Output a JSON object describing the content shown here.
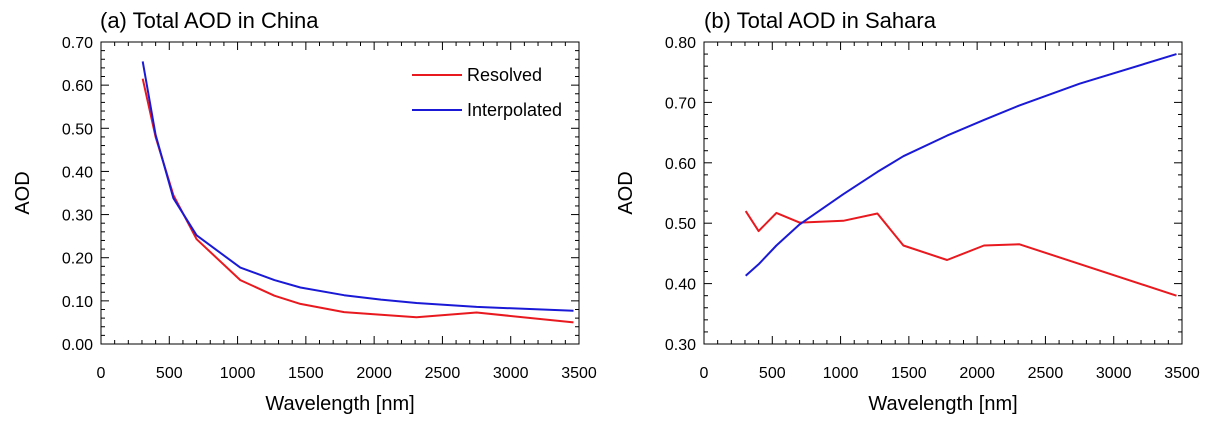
{
  "chart_data": [
    {
      "type": "line",
      "title": "(a) Total AOD in China",
      "xlabel": "Wavelength [nm]",
      "ylabel": "AOD",
      "xlim": [
        0,
        3500
      ],
      "ylim": [
        0,
        0.7
      ],
      "xticks": [
        0,
        500,
        1000,
        1500,
        2000,
        2500,
        3000,
        3500
      ],
      "xtick_labels": [
        "0",
        "500",
        "1000",
        "1500",
        "2000",
        "2500",
        "3000",
        "3500"
      ],
      "yticks": [
        0,
        0.1,
        0.2,
        0.3,
        0.4,
        0.5,
        0.6,
        0.7
      ],
      "ytick_labels": [
        "0.00",
        "0.10",
        "0.20",
        "0.30",
        "0.40",
        "0.50",
        "0.60",
        "0.70"
      ],
      "grid": false,
      "legend": "top-right",
      "series": [
        {
          "name": "Resolved",
          "color": "#e8191f",
          "points": [
            [
              305,
              0.615
            ],
            [
              400,
              0.48
            ],
            [
              530,
              0.345
            ],
            [
              700,
              0.243
            ],
            [
              1020,
              0.148
            ],
            [
              1270,
              0.112
            ],
            [
              1460,
              0.093
            ],
            [
              1780,
              0.074
            ],
            [
              2050,
              0.068
            ],
            [
              2310,
              0.062
            ],
            [
              2750,
              0.073
            ],
            [
              3460,
              0.05
            ]
          ]
        },
        {
          "name": "Interpolated",
          "color": "#1a1ad6",
          "points": [
            [
              305,
              0.655
            ],
            [
              400,
              0.485
            ],
            [
              530,
              0.338
            ],
            [
              700,
              0.252
            ],
            [
              1020,
              0.177
            ],
            [
              1270,
              0.148
            ],
            [
              1460,
              0.131
            ],
            [
              1780,
              0.113
            ],
            [
              2050,
              0.103
            ],
            [
              2310,
              0.095
            ],
            [
              2750,
              0.086
            ],
            [
              3460,
              0.077
            ]
          ]
        }
      ]
    },
    {
      "type": "line",
      "title": "(b) Total AOD in Sahara",
      "xlabel": "Wavelength [nm]",
      "ylabel": "AOD",
      "xlim": [
        0,
        3500
      ],
      "ylim": [
        0.3,
        0.8
      ],
      "xticks": [
        0,
        500,
        1000,
        1500,
        2000,
        2500,
        3000,
        3500
      ],
      "xtick_labels": [
        "0",
        "500",
        "1000",
        "1500",
        "2000",
        "2500",
        "3000",
        "3500"
      ],
      "yticks": [
        0.3,
        0.4,
        0.5,
        0.6,
        0.7,
        0.8
      ],
      "ytick_labels": [
        "0.30",
        "0.40",
        "0.50",
        "0.60",
        "0.70",
        "0.80"
      ],
      "grid": false,
      "series": [
        {
          "name": "Resolved",
          "color": "#e8191f",
          "points": [
            [
              305,
              0.52
            ],
            [
              400,
              0.487
            ],
            [
              530,
              0.517
            ],
            [
              700,
              0.501
            ],
            [
              1020,
              0.504
            ],
            [
              1270,
              0.516
            ],
            [
              1460,
              0.463
            ],
            [
              1780,
              0.439
            ],
            [
              2050,
              0.463
            ],
            [
              2310,
              0.465
            ],
            [
              3460,
              0.38
            ]
          ]
        },
        {
          "name": "Interpolated",
          "color": "#1a1ad6",
          "points": [
            [
              305,
              0.413
            ],
            [
              400,
              0.432
            ],
            [
              530,
              0.463
            ],
            [
              700,
              0.498
            ],
            [
              1020,
              0.548
            ],
            [
              1270,
              0.585
            ],
            [
              1460,
              0.611
            ],
            [
              1780,
              0.645
            ],
            [
              2050,
              0.671
            ],
            [
              2310,
              0.695
            ],
            [
              2750,
              0.731
            ],
            [
              3460,
              0.78
            ]
          ]
        }
      ]
    }
  ]
}
